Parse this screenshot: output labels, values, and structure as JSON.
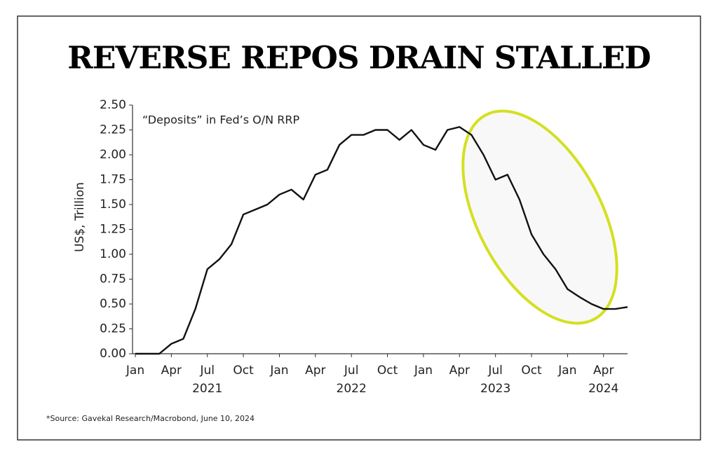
{
  "chart_data": {
    "type": "line",
    "title": "REVERSE REPOS DRAIN STALLED",
    "subtitle": "“Deposits” in Fed’s O/N RRP",
    "y_label": "US$, Trillion",
    "source": "*Source: Gavekal Research/Macrobond, June 10, 2024",
    "x": [
      "2021-01",
      "2021-02",
      "2021-03",
      "2021-04",
      "2021-05",
      "2021-06",
      "2021-07",
      "2021-08",
      "2021-09",
      "2021-10",
      "2021-11",
      "2021-12",
      "2022-01",
      "2022-02",
      "2022-03",
      "2022-04",
      "2022-05",
      "2022-06",
      "2022-07",
      "2022-08",
      "2022-09",
      "2022-10",
      "2022-11",
      "2022-12",
      "2023-01",
      "2023-02",
      "2023-03",
      "2023-04",
      "2023-05",
      "2023-06",
      "2023-07",
      "2023-08",
      "2023-09",
      "2023-10",
      "2023-11",
      "2023-12",
      "2024-01",
      "2024-02",
      "2024-03",
      "2024-04",
      "2024-05",
      "2024-06"
    ],
    "series": [
      {
        "name": "O/N RRP",
        "color": "#111111",
        "values": [
          0,
          0,
          0,
          0.1,
          0.15,
          0.45,
          0.85,
          0.95,
          1.1,
          1.4,
          1.45,
          1.5,
          1.6,
          1.65,
          1.55,
          1.8,
          1.85,
          2.1,
          2.2,
          2.2,
          2.25,
          2.25,
          2.15,
          2.25,
          2.1,
          2.05,
          2.25,
          2.28,
          2.2,
          2.0,
          1.75,
          1.8,
          1.55,
          1.2,
          1.0,
          0.85,
          0.65,
          0.57,
          0.5,
          0.45,
          0.45,
          0.47
        ]
      }
    ],
    "xlim": [
      "2021-01",
      "2024-06"
    ],
    "xticks": [
      {
        "value": "2021-01",
        "label": "Jan"
      },
      {
        "value": "2021-04",
        "label": "Apr"
      },
      {
        "value": "2021-07",
        "label": "Jul"
      },
      {
        "value": "2021-10",
        "label": "Oct"
      },
      {
        "value": "2022-01",
        "label": "Jan"
      },
      {
        "value": "2022-04",
        "label": "Apr"
      },
      {
        "value": "2022-07",
        "label": "Jul"
      },
      {
        "value": "2022-10",
        "label": "Oct"
      },
      {
        "value": "2023-01",
        "label": "Jan"
      },
      {
        "value": "2023-04",
        "label": "Apr"
      },
      {
        "value": "2023-07",
        "label": "Jul"
      },
      {
        "value": "2023-10",
        "label": "Oct"
      },
      {
        "value": "2024-01",
        "label": "Jan"
      },
      {
        "value": "2024-04",
        "label": "Apr"
      }
    ],
    "year_labels": [
      {
        "value": "2021-07",
        "label": "2021"
      },
      {
        "value": "2022-07",
        "label": "2022"
      },
      {
        "value": "2023-07",
        "label": "2023"
      },
      {
        "value": "2024-04",
        "label": "2024"
      }
    ],
    "ylim": [
      0,
      2.5
    ],
    "yticks": [
      {
        "value": 0,
        "label": "0.00"
      },
      {
        "value": 0.25,
        "label": "0.25"
      },
      {
        "value": 0.5,
        "label": "0.50"
      },
      {
        "value": 0.75,
        "label": "0.75"
      },
      {
        "value": 1,
        "label": "1.00"
      },
      {
        "value": 1.25,
        "label": "1.25"
      },
      {
        "value": 1.5,
        "label": "1.50"
      },
      {
        "value": 1.75,
        "label": "1.75"
      },
      {
        "value": 2,
        "label": "2.00"
      },
      {
        "value": 2.25,
        "label": "2.25"
      },
      {
        "value": 2.5,
        "label": "2.50"
      }
    ],
    "grid": false
  }
}
